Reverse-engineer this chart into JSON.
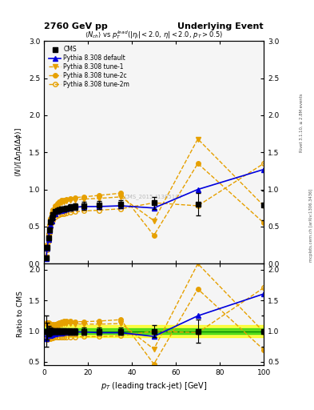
{
  "title_left": "2760 GeV pp",
  "title_right": "Underlying Event",
  "watermark": "CMS_2015_I1385107",
  "right_label": "mcplots.cern.ch [arXiv:1306.3436]",
  "right_label2": "Rivet 3.1.10, ≥ 2.8M events",
  "cms_data": {
    "x": [
      1.0,
      1.5,
      2.0,
      2.5,
      3.0,
      3.5,
      4.0,
      5.0,
      6.0,
      7.0,
      8.0,
      9.0,
      10.0,
      12.0,
      14.0,
      18.0,
      25.0,
      35.0,
      50.0,
      70.0,
      100.0
    ],
    "y": [
      0.08,
      0.22,
      0.35,
      0.46,
      0.56,
      0.62,
      0.66,
      0.7,
      0.72,
      0.73,
      0.74,
      0.74,
      0.75,
      0.76,
      0.77,
      0.78,
      0.79,
      0.8,
      0.82,
      0.8,
      0.79
    ],
    "yerr": [
      0.02,
      0.03,
      0.03,
      0.03,
      0.03,
      0.03,
      0.03,
      0.03,
      0.03,
      0.03,
      0.03,
      0.03,
      0.03,
      0.04,
      0.04,
      0.05,
      0.05,
      0.05,
      0.08,
      0.15,
      0.2
    ]
  },
  "pythia_default": {
    "x": [
      1.0,
      1.5,
      2.0,
      2.5,
      3.0,
      3.5,
      4.0,
      5.0,
      6.0,
      7.0,
      8.0,
      9.0,
      10.0,
      12.0,
      14.0,
      18.0,
      25.0,
      35.0,
      50.0,
      70.0,
      100.0
    ],
    "y": [
      0.07,
      0.21,
      0.33,
      0.44,
      0.52,
      0.58,
      0.63,
      0.67,
      0.7,
      0.71,
      0.72,
      0.73,
      0.74,
      0.75,
      0.76,
      0.77,
      0.77,
      0.78,
      0.75,
      1.0,
      1.27
    ],
    "color": "#0000dd",
    "label": "Pythia 8.308 default",
    "marker": "^",
    "linestyle": "-"
  },
  "pythia_tune1": {
    "x": [
      1.0,
      1.5,
      2.0,
      2.5,
      3.0,
      3.5,
      4.0,
      5.0,
      6.0,
      7.0,
      8.0,
      9.0,
      10.0,
      12.0,
      14.0,
      18.0,
      25.0,
      35.0,
      50.0,
      70.0,
      100.0
    ],
    "y": [
      0.09,
      0.24,
      0.38,
      0.5,
      0.59,
      0.65,
      0.7,
      0.75,
      0.78,
      0.8,
      0.82,
      0.83,
      0.84,
      0.85,
      0.86,
      0.87,
      0.88,
      0.9,
      0.58,
      1.68,
      0.78
    ],
    "color": "#e6a000",
    "label": "Pythia 8.308 tune-1",
    "marker": "v",
    "linestyle": "--",
    "fillstyle": "full"
  },
  "pythia_tune2c": {
    "x": [
      1.0,
      1.5,
      2.0,
      2.5,
      3.0,
      3.5,
      4.0,
      5.0,
      6.0,
      7.0,
      8.0,
      9.0,
      10.0,
      12.0,
      14.0,
      18.0,
      25.0,
      35.0,
      50.0,
      70.0,
      100.0
    ],
    "y": [
      0.09,
      0.25,
      0.4,
      0.52,
      0.61,
      0.68,
      0.73,
      0.78,
      0.81,
      0.83,
      0.85,
      0.86,
      0.87,
      0.88,
      0.89,
      0.9,
      0.92,
      0.95,
      0.38,
      1.35,
      0.55
    ],
    "color": "#e6a000",
    "label": "Pythia 8.308 tune-2c",
    "marker": "o",
    "linestyle": "--",
    "fillstyle": "full"
  },
  "pythia_tune2m": {
    "x": [
      1.0,
      1.5,
      2.0,
      2.5,
      3.0,
      3.5,
      4.0,
      5.0,
      6.0,
      7.0,
      8.0,
      9.0,
      10.0,
      12.0,
      14.0,
      18.0,
      25.0,
      35.0,
      50.0,
      70.0,
      100.0
    ],
    "y": [
      0.07,
      0.19,
      0.31,
      0.41,
      0.49,
      0.55,
      0.59,
      0.63,
      0.65,
      0.66,
      0.67,
      0.67,
      0.68,
      0.69,
      0.7,
      0.71,
      0.72,
      0.74,
      0.82,
      0.78,
      1.35
    ],
    "color": "#e6a000",
    "label": "Pythia 8.308 tune-2m",
    "marker": "o",
    "linestyle": "--",
    "fillstyle": "none"
  },
  "ylim_main": [
    0.0,
    3.0
  ],
  "ylim_ratio": [
    0.45,
    2.1
  ],
  "xlim": [
    0,
    100
  ],
  "ratio_band_green": 0.05,
  "ratio_band_yellow": 0.1,
  "bg_color": "#f5f5f5"
}
